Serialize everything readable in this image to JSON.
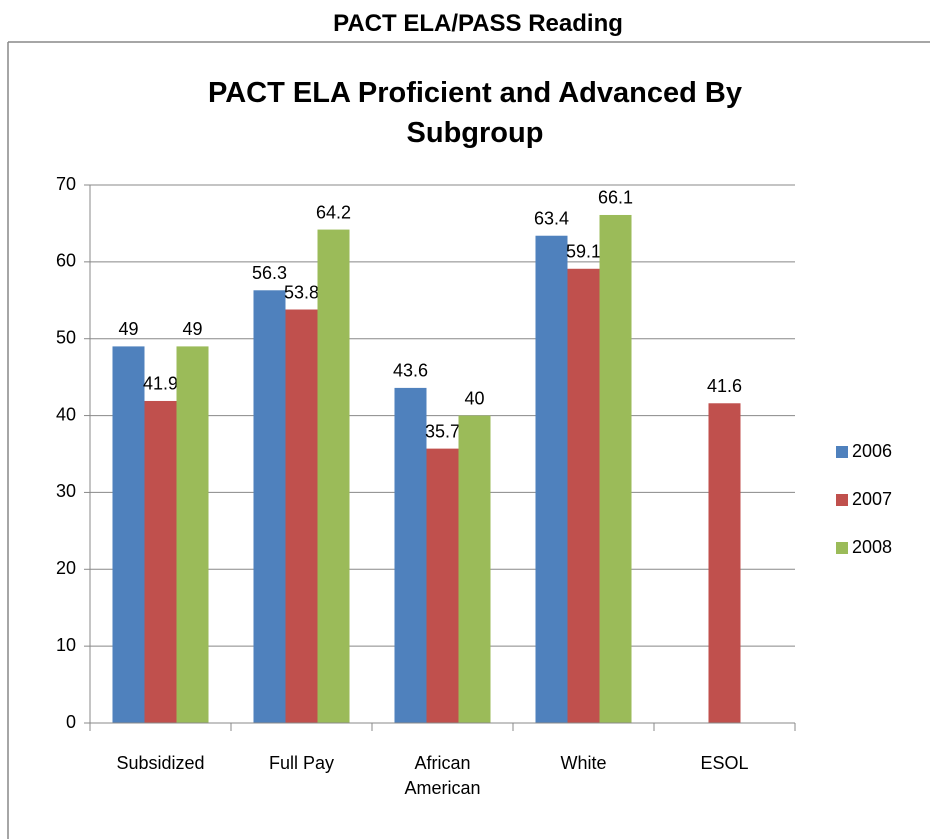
{
  "page_title": "PACT ELA/PASS Reading",
  "chart_data": {
    "type": "bar",
    "title": "PACT ELA Proficient and Advanced By Subgroup",
    "categories": [
      "Subsidized",
      "Full Pay",
      "African American",
      "White",
      "ESOL"
    ],
    "series": [
      {
        "name": "2006",
        "color": "#4f81bd",
        "values": [
          49,
          56.3,
          43.6,
          63.4,
          null
        ]
      },
      {
        "name": "2007",
        "color": "#c0504d",
        "values": [
          41.9,
          53.8,
          35.7,
          59.1,
          41.6
        ]
      },
      {
        "name": "2008",
        "color": "#9bbb59",
        "values": [
          49,
          64.2,
          40,
          66.1,
          null
        ]
      }
    ],
    "ylim": [
      0,
      70
    ],
    "yticks": [
      0,
      10,
      20,
      30,
      40,
      50,
      60,
      70
    ],
    "grid": true,
    "legend": "right"
  }
}
